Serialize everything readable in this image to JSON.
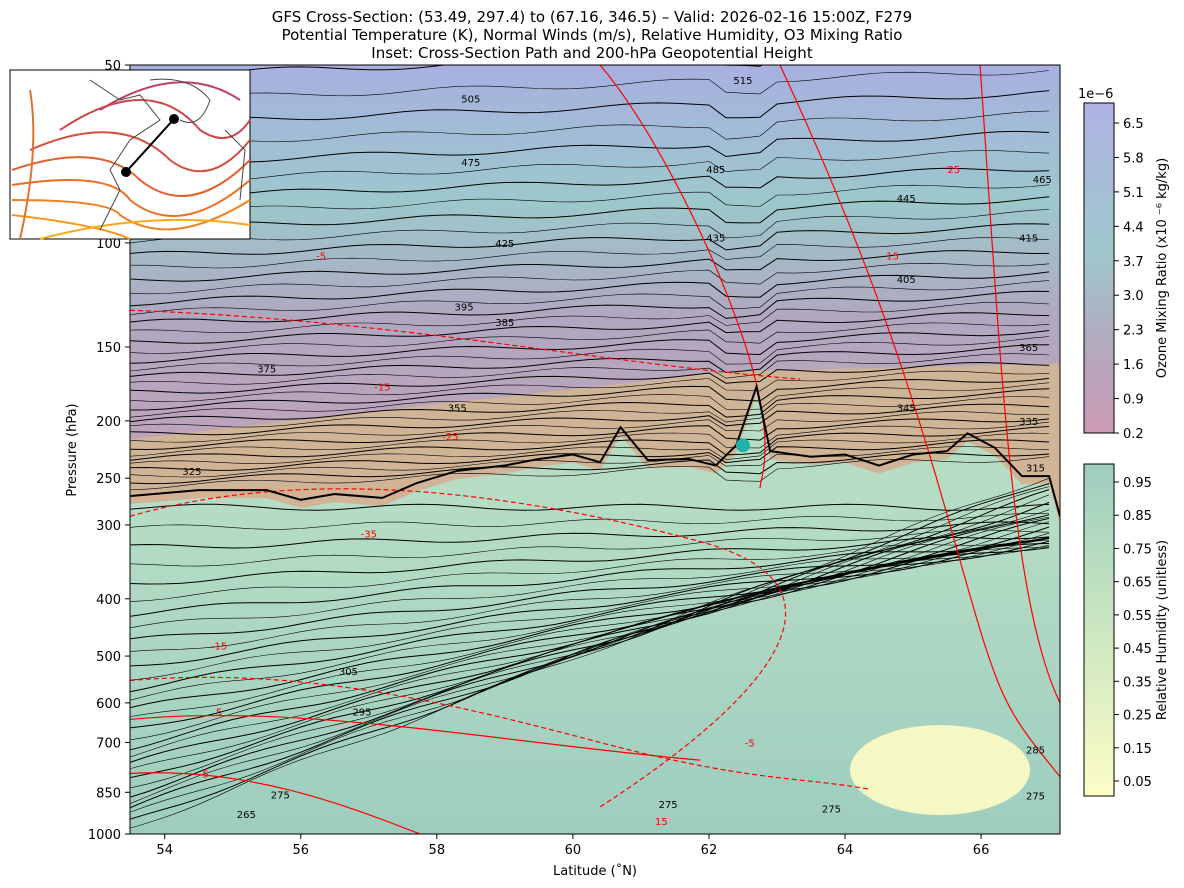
{
  "title_lines": [
    "GFS Cross-Section: (53.49, 297.4) to (67.16, 346.5) – Valid: 2026-02-16 15:00Z, F279",
    "Potential Temperature (K), Normal Winds (m/s), Relative Humidity, O3 Mixing Ratio",
    "Inset: Cross-Section Path and 200-hPa Geopotential Height"
  ],
  "chart_data": {
    "type": "contour",
    "xlabel": "Latitude (˚N)",
    "ylabel": "Pressure (hPa)",
    "xlim": [
      53.49,
      67.16
    ],
    "ylim": [
      1000,
      50
    ],
    "yscale": "log",
    "xticks": [
      "54",
      "56",
      "58",
      "60",
      "62",
      "64",
      "66"
    ],
    "yticks": [
      "50",
      "100",
      "150",
      "200",
      "250",
      "300",
      "400",
      "500",
      "600",
      "700",
      "850",
      "1000"
    ],
    "theta_labels": [
      {
        "t": "505",
        "lat": 58.5,
        "p": 57
      },
      {
        "t": "475",
        "lat": 58.5,
        "p": 73
      },
      {
        "t": "425",
        "lat": 59.0,
        "p": 100
      },
      {
        "t": "395",
        "lat": 58.4,
        "p": 128
      },
      {
        "t": "385",
        "lat": 59.0,
        "p": 136
      },
      {
        "t": "375",
        "lat": 55.5,
        "p": 163
      },
      {
        "t": "355",
        "lat": 58.3,
        "p": 190
      },
      {
        "t": "325",
        "lat": 54.4,
        "p": 243
      },
      {
        "t": "305",
        "lat": 56.7,
        "p": 530
      },
      {
        "t": "295",
        "lat": 56.9,
        "p": 620
      },
      {
        "t": "275",
        "lat": 55.7,
        "p": 858
      },
      {
        "t": "265",
        "lat": 55.2,
        "p": 925
      },
      {
        "t": "515",
        "lat": 62.5,
        "p": 53
      },
      {
        "t": "485",
        "lat": 62.1,
        "p": 75
      },
      {
        "t": "435",
        "lat": 62.1,
        "p": 98
      },
      {
        "t": "445",
        "lat": 64.9,
        "p": 84
      },
      {
        "t": "465",
        "lat": 66.9,
        "p": 78
      },
      {
        "t": "415",
        "lat": 66.7,
        "p": 98
      },
      {
        "t": "405",
        "lat": 64.9,
        "p": 115
      },
      {
        "t": "365",
        "lat": 66.7,
        "p": 150
      },
      {
        "t": "345",
        "lat": 64.9,
        "p": 190
      },
      {
        "t": "335",
        "lat": 66.7,
        "p": 200
      },
      {
        "t": "315",
        "lat": 66.8,
        "p": 240
      },
      {
        "t": "285",
        "lat": 66.8,
        "p": 720
      },
      {
        "t": "275",
        "lat": 61.4,
        "p": 890
      },
      {
        "t": "275",
        "lat": 63.8,
        "p": 905
      },
      {
        "t": "275",
        "lat": 66.8,
        "p": 860
      }
    ],
    "wind_labels": [
      {
        "t": "-5",
        "lat": 56.3,
        "p": 105
      },
      {
        "t": "-15",
        "lat": 57.2,
        "p": 175
      },
      {
        "t": "-25",
        "lat": 58.2,
        "p": 212
      },
      {
        "t": "-35",
        "lat": 57.0,
        "p": 310
      },
      {
        "t": "-15",
        "lat": 54.8,
        "p": 480
      },
      {
        "t": "5",
        "lat": 54.8,
        "p": 620
      },
      {
        "t": "5",
        "lat": 54.6,
        "p": 790
      },
      {
        "t": "-5",
        "lat": 62.6,
        "p": 700
      },
      {
        "t": "15",
        "lat": 61.3,
        "p": 950
      },
      {
        "t": "15",
        "lat": 64.7,
        "p": 105
      },
      {
        "t": "25",
        "lat": 65.6,
        "p": 75
      }
    ],
    "tropopause": [
      [
        53.5,
        268
      ],
      [
        54.5,
        262
      ],
      [
        55.5,
        262
      ],
      [
        56.0,
        272
      ],
      [
        56.5,
        266
      ],
      [
        57.2,
        270
      ],
      [
        57.7,
        255
      ],
      [
        58.3,
        243
      ],
      [
        59,
        238
      ],
      [
        59.5,
        232
      ],
      [
        60,
        228
      ],
      [
        60.4,
        235
      ],
      [
        60.7,
        205
      ],
      [
        61.1,
        233
      ],
      [
        61.7,
        232
      ],
      [
        62.1,
        238
      ],
      [
        62.4,
        220
      ],
      [
        62.7,
        175
      ],
      [
        62.9,
        225
      ],
      [
        63.5,
        230
      ],
      [
        64,
        228
      ],
      [
        64.5,
        238
      ],
      [
        65,
        228
      ],
      [
        65.5,
        225
      ],
      [
        65.8,
        210
      ],
      [
        66.2,
        222
      ],
      [
        66.6,
        248
      ],
      [
        67.0,
        248
      ],
      [
        67.16,
        290
      ]
    ],
    "marker": {
      "lat": 62.5,
      "p": 220,
      "color": "#20b2aa"
    },
    "colorbars": [
      {
        "label": "Ozone Mixing Ratio (x10 ⁻⁶ kg/kg)",
        "offset": "1e−6",
        "ticks": [
          "6.5",
          "5.8",
          "5.1",
          "4.4",
          "3.7",
          "3.0",
          "2.3",
          "1.6",
          "0.9",
          "0.2"
        ],
        "colors": [
          "#b0b2e4",
          "#9fc8cc",
          "#b0acbf",
          "#cc9ab5"
        ]
      },
      {
        "label": "Relative Humidity (unitless)",
        "ticks": [
          "0.95",
          "0.85",
          "0.75",
          "0.65",
          "0.55",
          "0.45",
          "0.35",
          "0.25",
          "0.15",
          "0.05"
        ],
        "colors": [
          "#9ecdbf",
          "#c2e2c0",
          "#fdfdc6"
        ]
      }
    ]
  }
}
